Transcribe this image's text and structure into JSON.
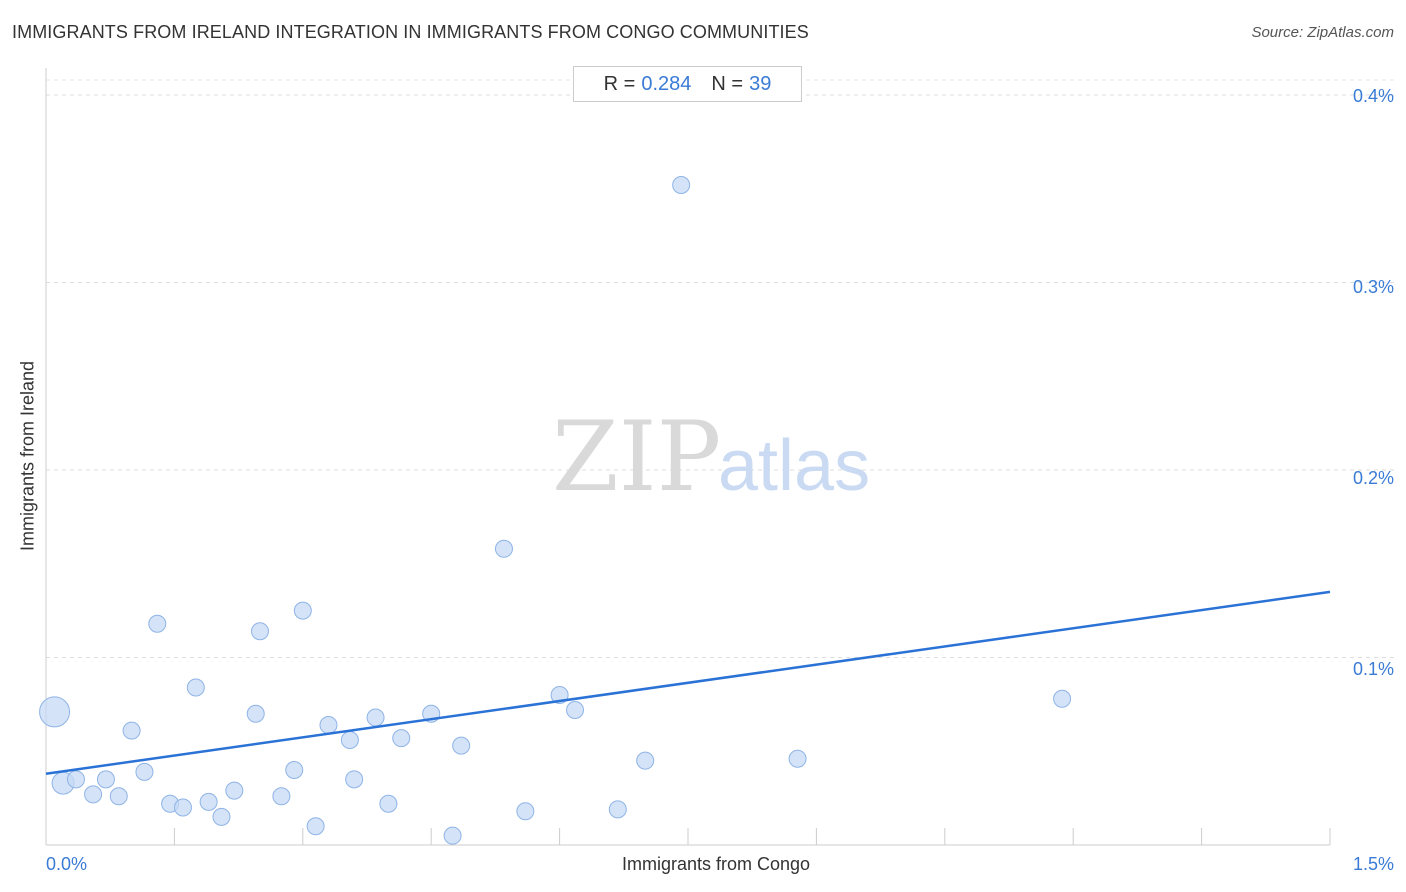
{
  "title": "IMMIGRANTS FROM IRELAND INTEGRATION IN IMMIGRANTS FROM CONGO COMMUNITIES",
  "source": "Source: ZipAtlas.com",
  "stats": {
    "r_label": "R =",
    "r_value": "0.284",
    "n_label": "N =",
    "n_value": "39"
  },
  "watermark": {
    "zip": "ZIP",
    "atlas": "atlas"
  },
  "colors": {
    "accent": "#3a7bd5",
    "point_fill": "#c5daf5",
    "point_stroke": "#8fb4e6",
    "trend": "#2a72d6"
  },
  "chart_data": {
    "type": "scatter",
    "xlabel": "Immigrants from Congo",
    "ylabel": "Immigrants from Ireland",
    "xlim": [
      0,
      1.5
    ],
    "ylim": [
      0,
      0.4
    ],
    "x_tick_labels": [
      "0.0%",
      "1.5%"
    ],
    "y_ticks": [
      0.1,
      0.2,
      0.3,
      0.4
    ],
    "y_tick_labels": [
      "0.1%",
      "0.2%",
      "0.3%",
      "0.4%"
    ],
    "grid": true,
    "trendline": {
      "x": [
        0,
        1.5
      ],
      "y": [
        0.038,
        0.135
      ]
    },
    "points": [
      {
        "x": 0.01,
        "y": 0.071,
        "size": 3
      },
      {
        "x": 0.02,
        "y": 0.033,
        "size": 2
      },
      {
        "x": 0.035,
        "y": 0.035,
        "size": 1
      },
      {
        "x": 0.055,
        "y": 0.027,
        "size": 1
      },
      {
        "x": 0.07,
        "y": 0.035,
        "size": 1
      },
      {
        "x": 0.085,
        "y": 0.026,
        "size": 1
      },
      {
        "x": 0.1,
        "y": 0.061,
        "size": 1
      },
      {
        "x": 0.115,
        "y": 0.039,
        "size": 1
      },
      {
        "x": 0.13,
        "y": 0.118,
        "size": 1
      },
      {
        "x": 0.145,
        "y": 0.022,
        "size": 1
      },
      {
        "x": 0.16,
        "y": 0.02,
        "size": 1
      },
      {
        "x": 0.175,
        "y": 0.084,
        "size": 1
      },
      {
        "x": 0.19,
        "y": 0.023,
        "size": 1
      },
      {
        "x": 0.205,
        "y": 0.015,
        "size": 1
      },
      {
        "x": 0.22,
        "y": 0.029,
        "size": 1
      },
      {
        "x": 0.245,
        "y": 0.07,
        "size": 1
      },
      {
        "x": 0.25,
        "y": 0.114,
        "size": 1
      },
      {
        "x": 0.275,
        "y": 0.026,
        "size": 1
      },
      {
        "x": 0.29,
        "y": 0.04,
        "size": 1
      },
      {
        "x": 0.3,
        "y": 0.125,
        "size": 1
      },
      {
        "x": 0.315,
        "y": 0.01,
        "size": 1
      },
      {
        "x": 0.33,
        "y": 0.064,
        "size": 1
      },
      {
        "x": 0.355,
        "y": 0.056,
        "size": 1
      },
      {
        "x": 0.36,
        "y": 0.035,
        "size": 1
      },
      {
        "x": 0.385,
        "y": 0.068,
        "size": 1
      },
      {
        "x": 0.4,
        "y": 0.022,
        "size": 1
      },
      {
        "x": 0.415,
        "y": 0.057,
        "size": 1
      },
      {
        "x": 0.45,
        "y": 0.07,
        "size": 1
      },
      {
        "x": 0.475,
        "y": 0.005,
        "size": 1
      },
      {
        "x": 0.485,
        "y": 0.053,
        "size": 1
      },
      {
        "x": 0.535,
        "y": 0.158,
        "size": 1
      },
      {
        "x": 0.56,
        "y": 0.018,
        "size": 1
      },
      {
        "x": 0.6,
        "y": 0.08,
        "size": 1
      },
      {
        "x": 0.618,
        "y": 0.072,
        "size": 1
      },
      {
        "x": 0.668,
        "y": 0.019,
        "size": 1
      },
      {
        "x": 0.7,
        "y": 0.045,
        "size": 1
      },
      {
        "x": 0.742,
        "y": 0.352,
        "size": 1
      },
      {
        "x": 0.878,
        "y": 0.046,
        "size": 1
      },
      {
        "x": 1.187,
        "y": 0.078,
        "size": 1
      }
    ]
  }
}
